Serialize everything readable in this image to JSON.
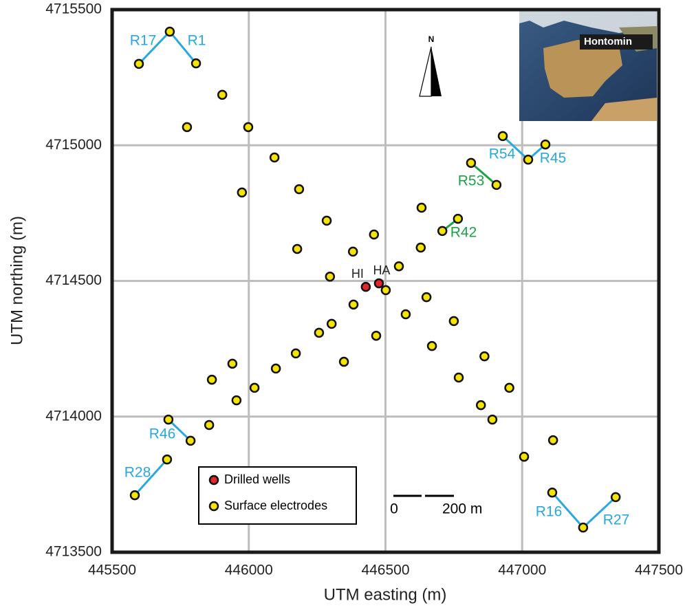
{
  "chart_data": {
    "type": "scatter",
    "xlabel": "UTM easting (m)",
    "ylabel": "UTM northing (m)",
    "xlim": [
      445500,
      447500
    ],
    "ylim": [
      4713500,
      4715500
    ],
    "xticks": [
      445500,
      446000,
      446500,
      447000,
      447500
    ],
    "yticks": [
      4713500,
      4714000,
      4714500,
      4715000,
      4715500
    ],
    "grid": true,
    "legend": "lower left",
    "series": [
      {
        "name": "Drilled wells",
        "color": "#e3262b",
        "x": [
          446428,
          446476
        ],
        "values": [
          4714478,
          4714491
        ],
        "labels": [
          "HI",
          "HA"
        ]
      },
      {
        "name": "Surface electrodes",
        "color": "#f4e400",
        "x": [
          445711,
          445598,
          445807,
          445903,
          445774,
          445998,
          446094,
          445975,
          446184,
          446285,
          446177,
          446381,
          446458,
          446632,
          446629,
          446549,
          446297,
          446501,
          446650,
          446383,
          446574,
          446303,
          446257,
          446466,
          446670,
          446750,
          446348,
          446172,
          446099,
          445940,
          445865,
          446021,
          445955,
          445855,
          445706,
          445787,
          445701,
          445583,
          446768,
          446862,
          446953,
          446849,
          446891,
          447007,
          447113,
          447110,
          447223,
          447342,
          446813,
          446906,
          446765,
          446708,
          446929,
          447022,
          447085
        ],
        "values": [
          4715419,
          4715300,
          4715302,
          4715186,
          4715067,
          4715067,
          4714955,
          4714826,
          4714838,
          4714722,
          4714618,
          4714608,
          4714671,
          4714770,
          4714623,
          4714554,
          4714516,
          4714466,
          4714440,
          4714413,
          4714377,
          4714342,
          4714309,
          4714298,
          4714260,
          4714352,
          4714202,
          4714233,
          4714177,
          4714195,
          4714136,
          4714106,
          4714060,
          4713969,
          4713989,
          4713911,
          4713842,
          4713710,
          4714144,
          4714222,
          4714106,
          4714042,
          4713989,
          4713852,
          4713913,
          4713720,
          4713591,
          4713703,
          4714935,
          4714854,
          4714729,
          4714684,
          4715034,
          4714947,
          4715003
        ]
      }
    ],
    "annotations": [
      {
        "text": "R17",
        "color": "#29a8df"
      },
      {
        "text": "R1",
        "color": "#29a8df"
      },
      {
        "text": "R54",
        "color": "#29a8df"
      },
      {
        "text": "R45",
        "color": "#29a8df"
      },
      {
        "text": "R53",
        "color": "#1fa04a"
      },
      {
        "text": "R42",
        "color": "#1fa04a"
      },
      {
        "text": "R46",
        "color": "#29a8df"
      },
      {
        "text": "R28",
        "color": "#29a8df"
      },
      {
        "text": "R16",
        "color": "#29a8df"
      },
      {
        "text": "R27",
        "color": "#29a8df"
      }
    ],
    "north_label": "N",
    "inset_label": "Hontomin",
    "scale_bar_labels": [
      "0",
      "200 m"
    ]
  }
}
